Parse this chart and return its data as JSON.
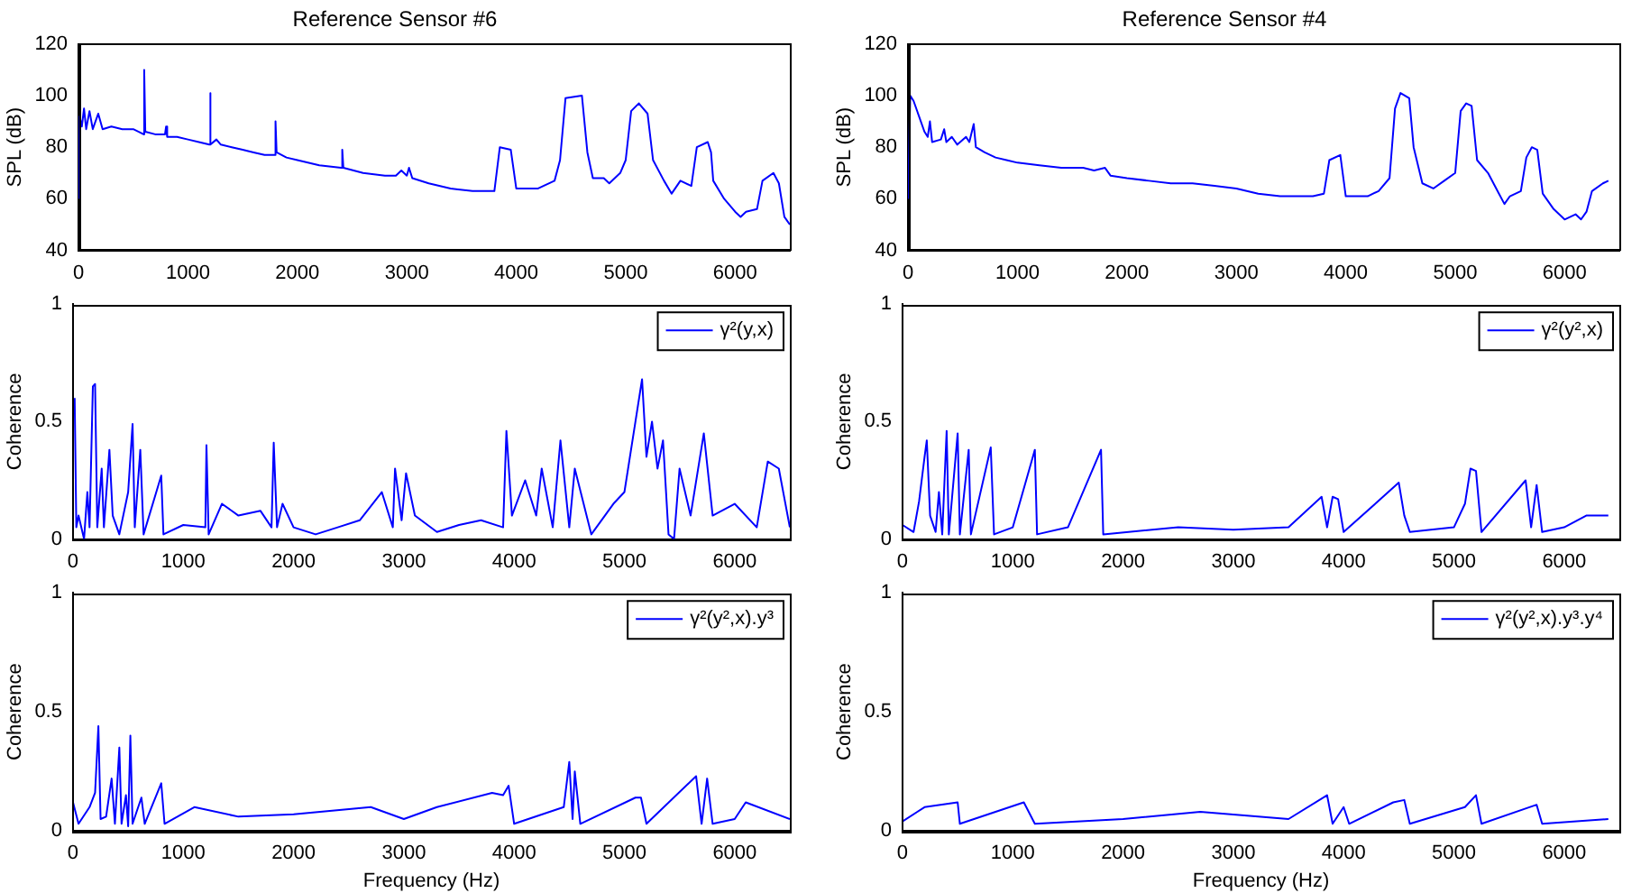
{
  "chart_data": [
    {
      "type": "line",
      "title": "Reference Sensor #6",
      "ylabel": "SPL (dB)",
      "xlim": [
        0,
        6500
      ],
      "xticks": [
        0,
        1000,
        2000,
        3000,
        4000,
        5000,
        6000
      ],
      "ylim": [
        40,
        120
      ],
      "yticks": [
        40,
        60,
        80,
        100,
        120
      ],
      "grid": false,
      "series": [
        {
          "color": "#0000ff",
          "x": [
            0,
            10,
            30,
            50,
            70,
            100,
            130,
            180,
            220,
            300,
            400,
            500,
            550,
            595,
            600,
            610,
            700,
            790,
            800,
            810,
            900,
            1000,
            1100,
            1195,
            1200,
            1210,
            1260,
            1300,
            1400,
            1500,
            1600,
            1700,
            1790,
            1800,
            1810,
            1900,
            2000,
            2200,
            2400,
            2410,
            2420,
            2600,
            2800,
            2900,
            2950,
            3000,
            3020,
            3050,
            3200,
            3400,
            3600,
            3800,
            3850,
            3950,
            4000,
            4200,
            4350,
            4400,
            4450,
            4600,
            4650,
            4700,
            4800,
            4850,
            4950,
            5000,
            5050,
            5120,
            5200,
            5250,
            5350,
            5420,
            5500,
            5600,
            5650,
            5750,
            5780,
            5800,
            5900,
            6000,
            6050,
            6100,
            6200,
            6250,
            6350,
            6400,
            6450,
            6500
          ],
          "values": [
            60,
            92,
            88,
            95,
            87,
            94,
            87,
            93,
            87,
            88,
            87,
            87,
            86,
            85,
            110,
            86,
            85,
            85,
            88,
            84,
            84,
            83,
            82,
            81,
            101,
            81,
            83,
            81,
            80,
            79,
            78,
            77,
            77,
            90,
            78,
            76,
            75,
            73,
            72,
            79,
            72,
            70,
            69,
            69,
            71,
            69,
            72,
            68,
            66,
            64,
            63,
            63,
            80,
            79,
            64,
            64,
            67,
            75,
            99,
            100,
            78,
            68,
            68,
            66,
            70,
            75,
            94,
            97,
            93,
            75,
            67,
            62,
            67,
            65,
            80,
            82,
            78,
            67,
            60,
            55,
            53,
            55,
            56,
            67,
            70,
            66,
            53,
            50
          ]
        }
      ]
    },
    {
      "type": "line",
      "title": "Reference Sensor #4",
      "ylabel": "SPL (dB)",
      "xlim": [
        0,
        6500
      ],
      "xticks": [
        0,
        1000,
        2000,
        3000,
        4000,
        5000,
        6000
      ],
      "ylim": [
        40,
        120
      ],
      "yticks": [
        40,
        60,
        80,
        100,
        120
      ],
      "grid": false,
      "series": [
        {
          "color": "#0000ff",
          "x": [
            0,
            20,
            50,
            100,
            150,
            180,
            200,
            220,
            300,
            330,
            350,
            400,
            450,
            530,
            560,
            600,
            620,
            700,
            800,
            900,
            1000,
            1200,
            1400,
            1600,
            1700,
            1800,
            1850,
            2000,
            2200,
            2400,
            2600,
            2800,
            3000,
            3200,
            3400,
            3600,
            3700,
            3800,
            3850,
            3950,
            4000,
            4200,
            4300,
            4400,
            4450,
            4500,
            4580,
            4620,
            4700,
            4800,
            4900,
            5000,
            5050,
            5100,
            5150,
            5200,
            5300,
            5400,
            5450,
            5500,
            5600,
            5650,
            5700,
            5750,
            5800,
            5900,
            6000,
            6100,
            6150,
            6200,
            6250,
            6350,
            6400
          ],
          "values": [
            60,
            100,
            98,
            92,
            86,
            84,
            90,
            82,
            83,
            87,
            82,
            84,
            81,
            84,
            82,
            89,
            80,
            78,
            76,
            75,
            74,
            73,
            72,
            72,
            71,
            72,
            69,
            68,
            67,
            66,
            66,
            65,
            64,
            62,
            61,
            61,
            61,
            62,
            75,
            77,
            61,
            61,
            63,
            68,
            95,
            101,
            99,
            80,
            66,
            64,
            67,
            70,
            94,
            97,
            96,
            75,
            70,
            62,
            58,
            61,
            63,
            76,
            80,
            79,
            62,
            56,
            52,
            54,
            52,
            55,
            63,
            66,
            67
          ]
        }
      ]
    },
    {
      "type": "line",
      "ylabel": "Coherence",
      "xlim": [
        0,
        6500
      ],
      "xticks": [
        0,
        1000,
        2000,
        3000,
        4000,
        5000,
        6000
      ],
      "ylim": [
        0,
        1
      ],
      "yticks": [
        0,
        0.5,
        1
      ],
      "grid": false,
      "legend": "top right",
      "series": [
        {
          "name": "γ²(y,x)",
          "color": "#0000ff",
          "x": [
            15,
            30,
            50,
            100,
            130,
            150,
            180,
            200,
            220,
            260,
            280,
            330,
            360,
            420,
            500,
            540,
            560,
            610,
            640,
            800,
            820,
            1000,
            1200,
            1210,
            1230,
            1350,
            1500,
            1700,
            1800,
            1820,
            1850,
            1900,
            2000,
            2200,
            2400,
            2600,
            2800,
            2900,
            2920,
            2980,
            3020,
            3100,
            3300,
            3500,
            3700,
            3900,
            3930,
            3980,
            4100,
            4200,
            4250,
            4350,
            4420,
            4500,
            4550,
            4700,
            4900,
            5000,
            5100,
            5160,
            5200,
            5250,
            5300,
            5350,
            5400,
            5450,
            5500,
            5600,
            5720,
            5800,
            6000,
            6200,
            6300,
            6400,
            6500
          ],
          "values": [
            0.6,
            0.05,
            0.1,
            0.0,
            0.2,
            0.05,
            0.65,
            0.66,
            0.05,
            0.3,
            0.05,
            0.38,
            0.1,
            0.02,
            0.2,
            0.49,
            0.05,
            0.38,
            0.02,
            0.27,
            0.02,
            0.06,
            0.05,
            0.4,
            0.02,
            0.15,
            0.1,
            0.12,
            0.05,
            0.41,
            0.05,
            0.15,
            0.05,
            0.02,
            0.05,
            0.08,
            0.2,
            0.05,
            0.3,
            0.08,
            0.28,
            0.1,
            0.03,
            0.06,
            0.08,
            0.05,
            0.46,
            0.1,
            0.25,
            0.1,
            0.3,
            0.05,
            0.42,
            0.05,
            0.3,
            0.02,
            0.15,
            0.2,
            0.5,
            0.68,
            0.35,
            0.5,
            0.3,
            0.42,
            0.02,
            0.0,
            0.3,
            0.1,
            0.45,
            0.1,
            0.15,
            0.05,
            0.33,
            0.3,
            0.05
          ]
        }
      ]
    },
    {
      "type": "line",
      "ylabel": "Coherence",
      "xlim": [
        0,
        6500
      ],
      "xticks": [
        0,
        1000,
        2000,
        3000,
        4000,
        5000,
        6000
      ],
      "ylim": [
        0,
        1
      ],
      "yticks": [
        0,
        0.5,
        1
      ],
      "grid": false,
      "legend": "top right",
      "series": [
        {
          "name": "γ²(y²,x)",
          "color": "#0000ff",
          "x": [
            0,
            100,
            150,
            200,
            220,
            250,
            300,
            330,
            360,
            400,
            420,
            500,
            520,
            600,
            620,
            800,
            830,
            1000,
            1200,
            1220,
            1500,
            1800,
            1820,
            2500,
            3000,
            3500,
            3800,
            3850,
            3900,
            3950,
            4000,
            4500,
            4550,
            4600,
            5000,
            5100,
            5150,
            5200,
            5250,
            5650,
            5700,
            5750,
            5800,
            6000,
            6200,
            6400
          ],
          "values": [
            0.06,
            0.03,
            0.16,
            0.35,
            0.42,
            0.1,
            0.03,
            0.2,
            0.02,
            0.46,
            0.02,
            0.45,
            0.02,
            0.38,
            0.02,
            0.39,
            0.02,
            0.05,
            0.38,
            0.02,
            0.05,
            0.38,
            0.02,
            0.05,
            0.04,
            0.05,
            0.18,
            0.05,
            0.18,
            0.17,
            0.03,
            0.24,
            0.1,
            0.03,
            0.05,
            0.15,
            0.3,
            0.29,
            0.03,
            0.25,
            0.05,
            0.23,
            0.03,
            0.05,
            0.1,
            0.1
          ]
        }
      ]
    },
    {
      "type": "line",
      "xlabel": "Frequency (Hz)",
      "ylabel": "Coherence",
      "xlim": [
        0,
        6500
      ],
      "xticks": [
        0,
        1000,
        2000,
        3000,
        4000,
        5000,
        6000
      ],
      "ylim": [
        0,
        1
      ],
      "yticks": [
        0,
        0.5,
        1
      ],
      "grid": false,
      "legend": "top right",
      "series": [
        {
          "name": "γ²(y²,x).y³",
          "color": "#0000ff",
          "x": [
            0,
            50,
            150,
            200,
            230,
            250,
            300,
            350,
            380,
            420,
            440,
            480,
            500,
            520,
            540,
            620,
            650,
            800,
            830,
            1100,
            1500,
            2000,
            2700,
            3000,
            3300,
            3800,
            3900,
            3950,
            4000,
            4450,
            4500,
            4530,
            4550,
            4600,
            5100,
            5150,
            5200,
            5650,
            5700,
            5750,
            5800,
            6000,
            6100,
            6500
          ],
          "values": [
            0.12,
            0.03,
            0.1,
            0.16,
            0.44,
            0.05,
            0.06,
            0.22,
            0.03,
            0.35,
            0.03,
            0.15,
            0.02,
            0.4,
            0.03,
            0.14,
            0.03,
            0.2,
            0.03,
            0.1,
            0.06,
            0.07,
            0.1,
            0.05,
            0.1,
            0.16,
            0.15,
            0.19,
            0.03,
            0.1,
            0.29,
            0.05,
            0.25,
            0.03,
            0.14,
            0.14,
            0.03,
            0.23,
            0.03,
            0.22,
            0.03,
            0.05,
            0.12,
            0.05
          ]
        }
      ]
    },
    {
      "type": "line",
      "xlabel": "Frequency (Hz)",
      "ylabel": "Coherence",
      "xlim": [
        0,
        6500
      ],
      "xticks": [
        0,
        1000,
        2000,
        3000,
        4000,
        5000,
        6000
      ],
      "ylim": [
        0,
        1
      ],
      "yticks": [
        0,
        0.5,
        1
      ],
      "grid": false,
      "legend": "top right",
      "series": [
        {
          "name": "γ²(y²,x).y³.y⁴",
          "color": "#0000ff",
          "x": [
            0,
            200,
            500,
            520,
            1100,
            1200,
            2000,
            2700,
            3500,
            3850,
            3900,
            4000,
            4050,
            4450,
            4550,
            4600,
            5100,
            5200,
            5250,
            5750,
            5800,
            6400
          ],
          "values": [
            0.04,
            0.1,
            0.12,
            0.03,
            0.12,
            0.03,
            0.05,
            0.08,
            0.05,
            0.15,
            0.03,
            0.1,
            0.03,
            0.12,
            0.13,
            0.03,
            0.1,
            0.15,
            0.03,
            0.11,
            0.03,
            0.05
          ]
        }
      ]
    }
  ]
}
